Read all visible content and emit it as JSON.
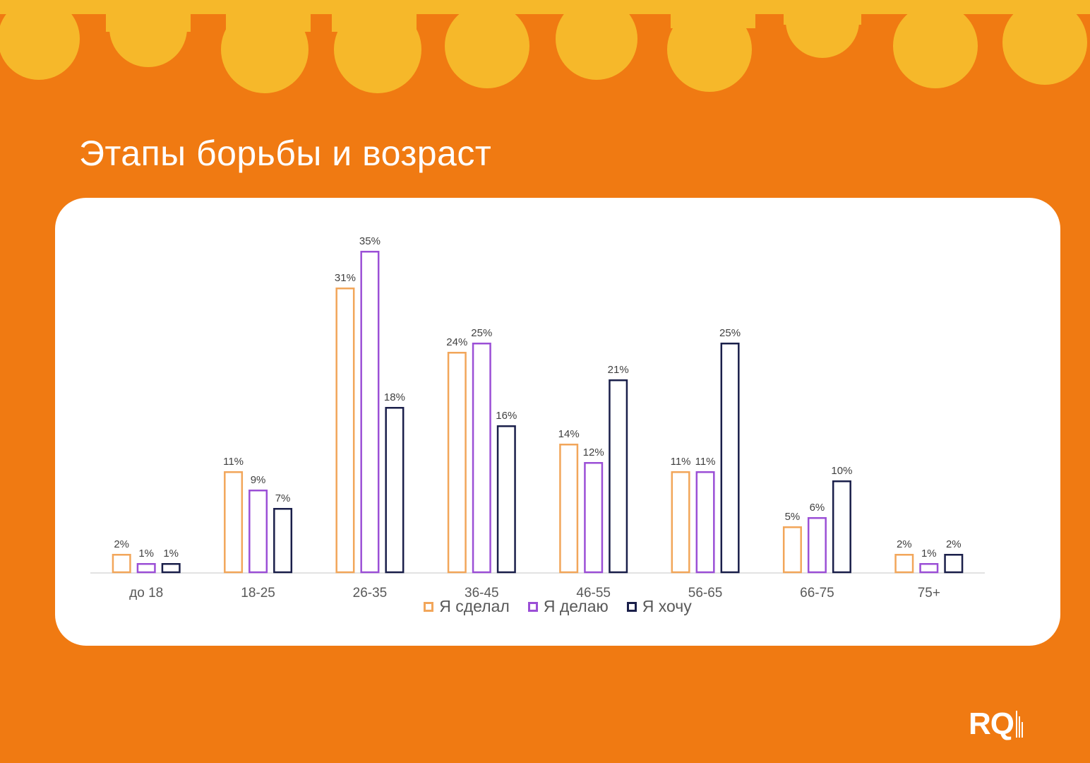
{
  "page": {
    "title": "Этапы борьбы и возраст",
    "logo_text": "RQ",
    "colors": {
      "background": "#f07a12",
      "pattern": "#f6b82a",
      "card": "#ffffff"
    }
  },
  "chart_data": {
    "type": "bar",
    "categories": [
      "до 18",
      "18-25",
      "26-35",
      "36-45",
      "46-55",
      "56-65",
      "66-75",
      "75+"
    ],
    "series": [
      {
        "name": "Я сделал",
        "color": "#f2a65a",
        "values": [
          2,
          11,
          31,
          24,
          14,
          11,
          5,
          2
        ]
      },
      {
        "name": "Я делаю",
        "color": "#9b4fd6",
        "values": [
          1,
          9,
          35,
          25,
          12,
          11,
          6,
          1
        ]
      },
      {
        "name": "Я хочу",
        "color": "#1a1f4a",
        "values": [
          1,
          7,
          18,
          16,
          21,
          25,
          10,
          2
        ]
      }
    ],
    "value_format": "percent",
    "ylim": [
      0,
      35
    ],
    "grid": false,
    "legend_position": "bottom"
  }
}
